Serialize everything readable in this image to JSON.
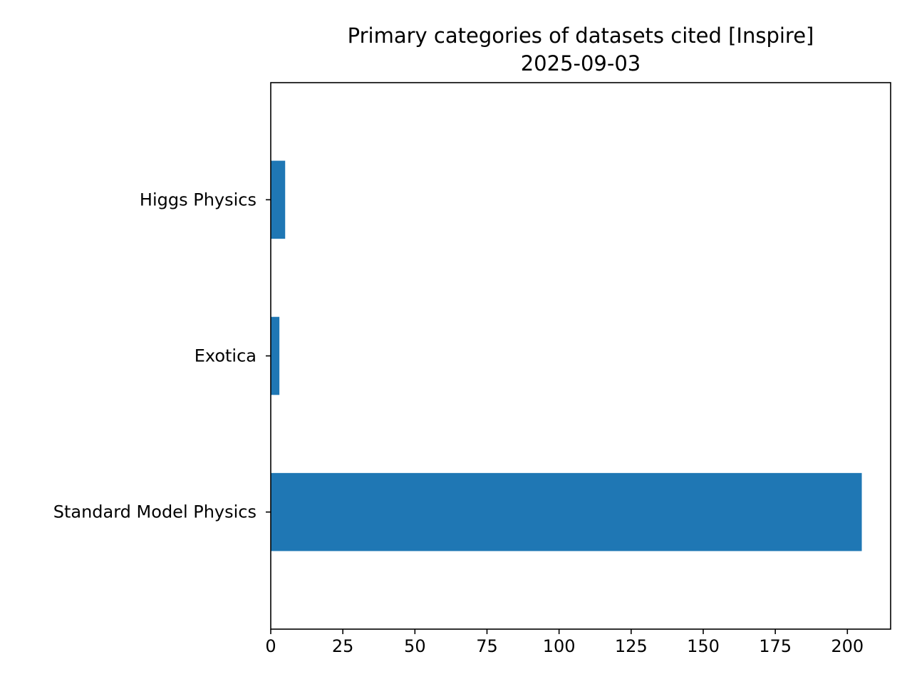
{
  "chart_data": {
    "type": "bar",
    "orientation": "horizontal",
    "title": "Primary categories of datasets cited [Inspire]",
    "subtitle": "2025-09-03",
    "xlabel": "",
    "ylabel": "",
    "categories": [
      "Standard Model Physics",
      "Exotica",
      "Higgs Physics"
    ],
    "values": [
      205,
      3,
      5
    ],
    "xlim": [
      0,
      215
    ],
    "xticks": [
      0,
      25,
      50,
      75,
      100,
      125,
      150,
      175,
      200
    ],
    "grid": false,
    "legend": "none",
    "bar_color": "#1f77b4"
  }
}
